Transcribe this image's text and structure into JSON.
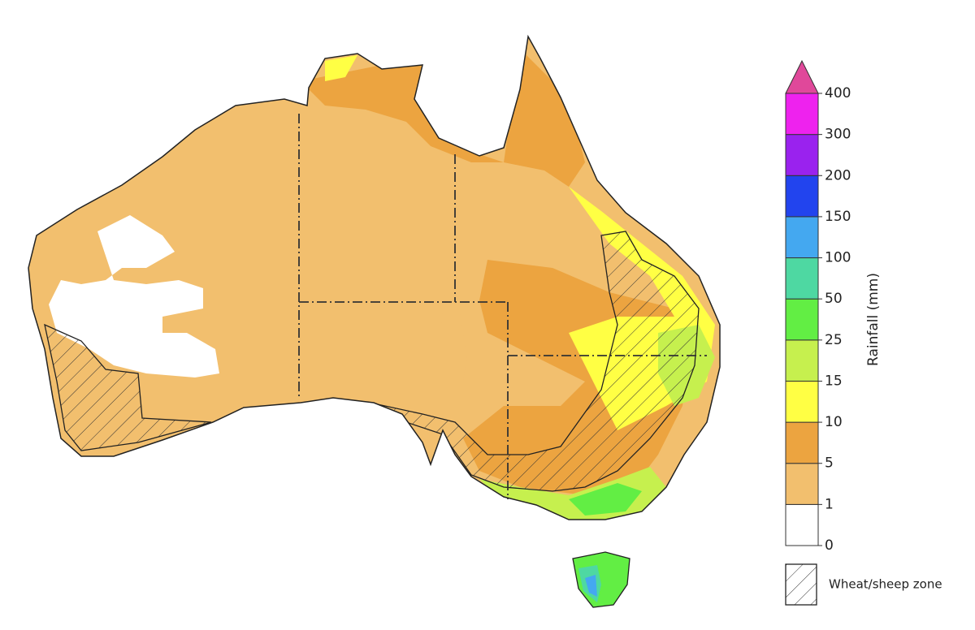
{
  "legend": {
    "title": "Rainfall (mm)",
    "ticks": [
      0,
      1,
      5,
      10,
      15,
      25,
      50,
      100,
      150,
      200,
      300,
      400
    ],
    "colors": [
      "#ffffff",
      "#f2bf6e",
      "#eca440",
      "#ffff44",
      "#c6f04e",
      "#62ee44",
      "#4ed8a2",
      "#44a8f0",
      "#2244ee",
      "#9a22ee",
      "#ee22ee"
    ],
    "extend_color": "#e0489a"
  },
  "hatch_legend": {
    "label": "Wheat/sheep zone"
  }
}
